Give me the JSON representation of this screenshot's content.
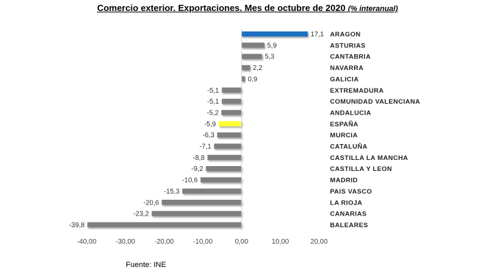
{
  "chart_data": {
    "type": "bar",
    "orientation": "horizontal",
    "title": "Comercio exterior. Exportaciones. Mes de octubre de 2020",
    "subtitle": "(% interanual)",
    "source": "Fuente: INE",
    "xlim": [
      -40,
      20
    ],
    "xticks": [
      "-40,00",
      "-30,00",
      "-20,00",
      "-10,00",
      "0,00",
      "10,00",
      "20,00"
    ],
    "xtick_values": [
      -40,
      -30,
      -20,
      -10,
      0,
      10,
      20
    ],
    "grid": false,
    "legend": "none",
    "categories": [
      "ARAGON",
      "ASTURIAS",
      "CANTABRIA",
      "NAVARRA",
      "GALICIA",
      "EXTREMADURA",
      "COMUNIDAD VALENCIANA",
      "ANDALUCIA",
      "ESPAÑA",
      "MURCIA",
      "CATALUÑA",
      "CASTILLA LA MANCHA",
      "CASTILLA Y LEON",
      "MADRID",
      "PAIS VASCO",
      "LA RIOJA",
      "CANARIAS",
      "BALEARES"
    ],
    "values": [
      17.1,
      5.9,
      5.3,
      2.2,
      0.9,
      -5.1,
      -5.1,
      -5.2,
      -5.9,
      -6.3,
      -7.1,
      -8.8,
      -9.2,
      -10.6,
      -15.3,
      -20.6,
      -23.2,
      -39.8
    ],
    "value_labels": [
      "17,1",
      "5,9",
      "5,3",
      "2,2",
      "0,9",
      "-5,1",
      "-5,1",
      "-5,2",
      "-5,9",
      "-6,3",
      "-7,1",
      "-8,8",
      "-9,2",
      "-10,6",
      "-15,3",
      "-20,6",
      "-23,2",
      "-39,8"
    ],
    "colors": {
      "default": "#7f7f7f",
      "highlight_top": "#1f6fbf",
      "highlight_spain": "#ffff33"
    },
    "bar_colors": [
      "highlight_top",
      "default",
      "default",
      "default",
      "default",
      "default",
      "default",
      "default",
      "highlight_spain",
      "default",
      "default",
      "default",
      "default",
      "default",
      "default",
      "default",
      "default",
      "default"
    ]
  }
}
